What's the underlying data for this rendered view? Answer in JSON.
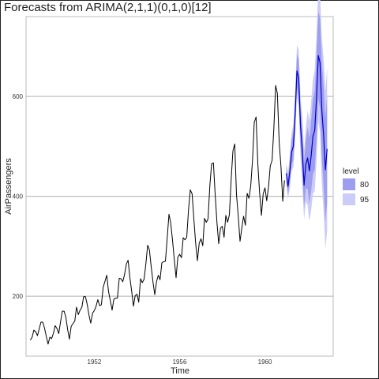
{
  "chart_data": {
    "type": "line",
    "title": "Forecasts from ARIMA(2,1,1)(0,1,0)[12]",
    "xlabel": "Time",
    "ylabel": "AirPassengers",
    "xlim": [
      1948.8,
      1963.2
    ],
    "ylim": [
      80,
      760
    ],
    "x_ticks": [
      1952,
      1956,
      1960
    ],
    "y_ticks": [
      200,
      400,
      600
    ],
    "grid": "horizontal",
    "legend": {
      "title": "level",
      "placement": "right",
      "entries": [
        "80",
        "95"
      ]
    },
    "colors": {
      "history": "#000000",
      "forecast": "#0000cc",
      "band80": "#9e9ef0",
      "band95": "#ccccf8"
    },
    "history": {
      "start": 1949,
      "frequency": 12,
      "values": [
        112,
        118,
        132,
        129,
        121,
        135,
        148,
        148,
        136,
        119,
        104,
        118,
        115,
        126,
        141,
        135,
        125,
        149,
        170,
        170,
        158,
        133,
        114,
        140,
        145,
        150,
        178,
        163,
        172,
        178,
        199,
        199,
        184,
        162,
        146,
        166,
        171,
        180,
        193,
        181,
        183,
        218,
        230,
        242,
        209,
        191,
        172,
        194,
        196,
        196,
        236,
        235,
        229,
        243,
        264,
        272,
        237,
        211,
        180,
        201,
        204,
        188,
        235,
        227,
        234,
        264,
        302,
        293,
        259,
        229,
        203,
        229,
        242,
        233,
        267,
        269,
        270,
        315,
        364,
        347,
        312,
        274,
        237,
        278,
        284,
        277,
        317,
        313,
        318,
        374,
        413,
        405,
        355,
        306,
        271,
        306,
        315,
        301,
        356,
        348,
        355,
        422,
        465,
        467,
        404,
        347,
        305,
        336,
        340,
        318,
        362,
        348,
        363,
        435,
        491,
        505,
        404,
        359,
        310,
        337,
        360,
        342,
        406,
        396,
        420,
        472,
        548,
        559,
        463,
        407,
        362,
        405,
        417,
        391,
        419,
        461,
        472,
        535,
        622,
        606,
        508,
        461,
        390,
        432
      ]
    },
    "forecast": {
      "start": 1961,
      "frequency": 12,
      "mean": [
        446,
        420,
        450,
        489,
        501,
        564,
        651,
        637,
        541,
        493,
        422,
        464,
        477,
        451,
        481,
        520,
        532,
        595,
        682,
        668,
        572,
        524,
        453,
        495
      ],
      "lo80": [
        432,
        403,
        428,
        464,
        473,
        533,
        617,
        600,
        501,
        450,
        377,
        416,
        415,
        385,
        410,
        445,
        453,
        512,
        595,
        577,
        477,
        424,
        350,
        388
      ],
      "hi80": [
        460,
        437,
        472,
        514,
        529,
        595,
        685,
        674,
        581,
        536,
        467,
        512,
        539,
        517,
        552,
        595,
        611,
        678,
        769,
        759,
        667,
        624,
        556,
        602
      ],
      "lo95": [
        424,
        394,
        416,
        451,
        458,
        517,
        599,
        580,
        480,
        427,
        353,
        390,
        382,
        350,
        372,
        405,
        411,
        468,
        549,
        529,
        427,
        371,
        295,
        331
      ],
      "hi95": [
        468,
        446,
        484,
        527,
        544,
        611,
        703,
        694,
        602,
        559,
        491,
        538,
        572,
        552,
        590,
        635,
        653,
        722,
        815,
        807,
        717,
        677,
        611,
        659
      ]
    }
  }
}
